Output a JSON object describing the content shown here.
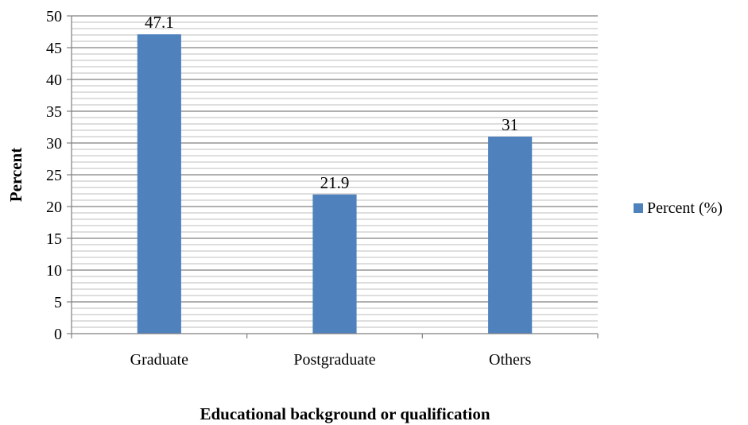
{
  "chart_data": {
    "type": "bar",
    "categories": [
      "Graduate",
      "Postgraduate",
      "Others"
    ],
    "series": [
      {
        "name": "Percent (%)",
        "values": [
          47.1,
          21.9,
          31
        ],
        "value_labels": [
          "47.1",
          "21.9",
          "31"
        ],
        "color": "#4F81BD"
      }
    ],
    "xlabel": "Educational background or qualification",
    "ylabel": "Percent",
    "ylim": [
      0,
      50
    ],
    "major_ticks": [
      0,
      5,
      10,
      15,
      20,
      25,
      30,
      35,
      40,
      45,
      50
    ],
    "minor_gridline_step": 1,
    "grid": true,
    "legend": "right"
  }
}
